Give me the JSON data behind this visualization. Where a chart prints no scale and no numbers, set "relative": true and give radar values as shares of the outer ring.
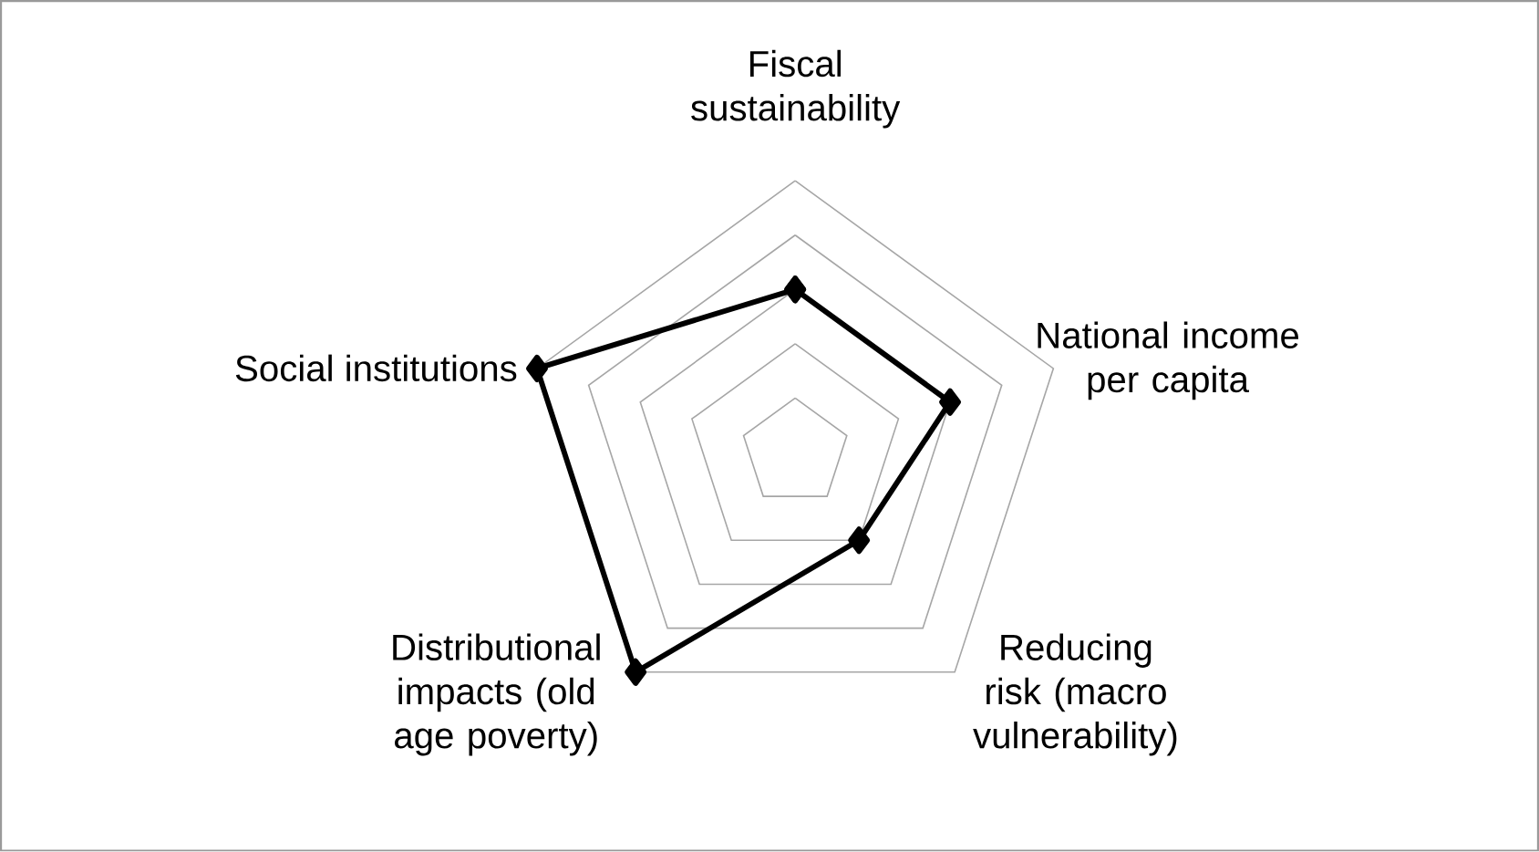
{
  "chart_data": {
    "type": "radar",
    "relative": true,
    "grid": true,
    "marker": "diamond",
    "line_style": "solid",
    "categories": [
      "Fiscal sustainability",
      "National income per capita",
      "Reducing risk (macro vulnerability)",
      "Distributional impacts (old age poverty)",
      "Social institutions"
    ],
    "series": [
      {
        "color": "#000000",
        "values": [
          0.6,
          0.6,
          0.4,
          1.0,
          1.0
        ]
      }
    ]
  }
}
